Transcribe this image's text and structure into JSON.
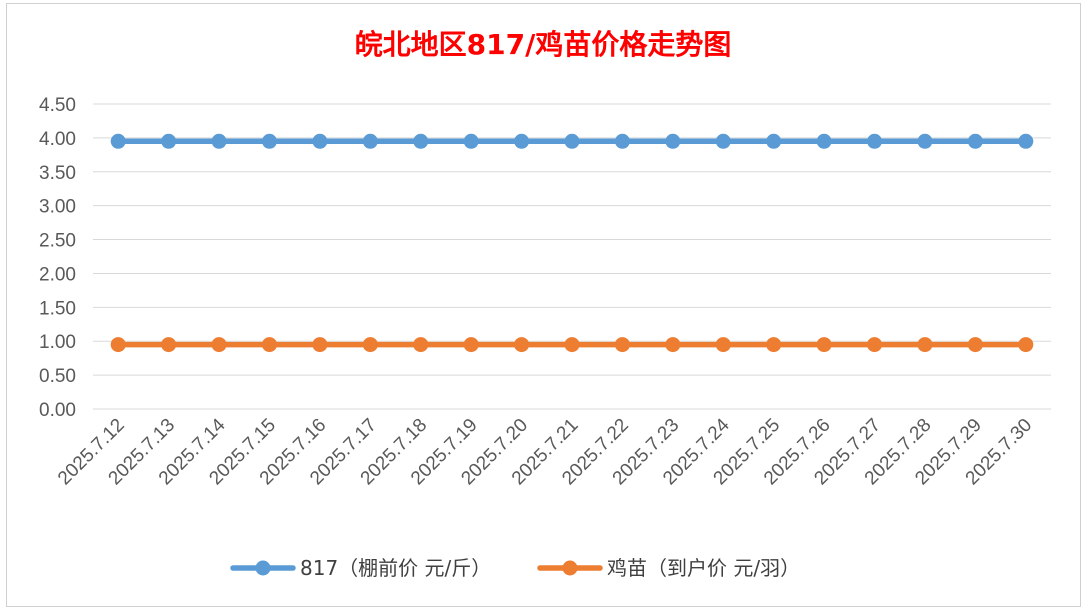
{
  "chart_data": {
    "type": "line",
    "title": "皖北地区817/鸡苗价格走势图",
    "categories": [
      "2025.7.12",
      "2025.7.13",
      "2025.7.14",
      "2025.7.15",
      "2025.7.16",
      "2025.7.17",
      "2025.7.18",
      "2025.7.19",
      "2025.7.20",
      "2025.7.21",
      "2025.7.22",
      "2025.7.23",
      "2025.7.24",
      "2025.7.25",
      "2025.7.26",
      "2025.7.27",
      "2025.7.28",
      "2025.7.29",
      "2025.7.30"
    ],
    "series": [
      {
        "name": "817（棚前价 元/斤）",
        "color": "#5b9bd5",
        "values": [
          3.95,
          3.95,
          3.95,
          3.95,
          3.95,
          3.95,
          3.95,
          3.95,
          3.95,
          3.95,
          3.95,
          3.95,
          3.95,
          3.95,
          3.95,
          3.95,
          3.95,
          3.95,
          3.95
        ]
      },
      {
        "name": "鸡苗（到户价 元/羽）",
        "color": "#ed7d31",
        "values": [
          0.95,
          0.95,
          0.95,
          0.95,
          0.95,
          0.95,
          0.95,
          0.95,
          0.95,
          0.95,
          0.95,
          0.95,
          0.95,
          0.95,
          0.95,
          0.95,
          0.95,
          0.95,
          0.95
        ]
      }
    ],
    "y_ticks": [
      "0.00",
      "0.50",
      "1.00",
      "1.50",
      "2.00",
      "2.50",
      "3.00",
      "3.50",
      "4.00",
      "4.50"
    ],
    "ylim": [
      0,
      4.5
    ],
    "grid": true,
    "legend_position": "bottom",
    "title_color": "#ff0000"
  }
}
